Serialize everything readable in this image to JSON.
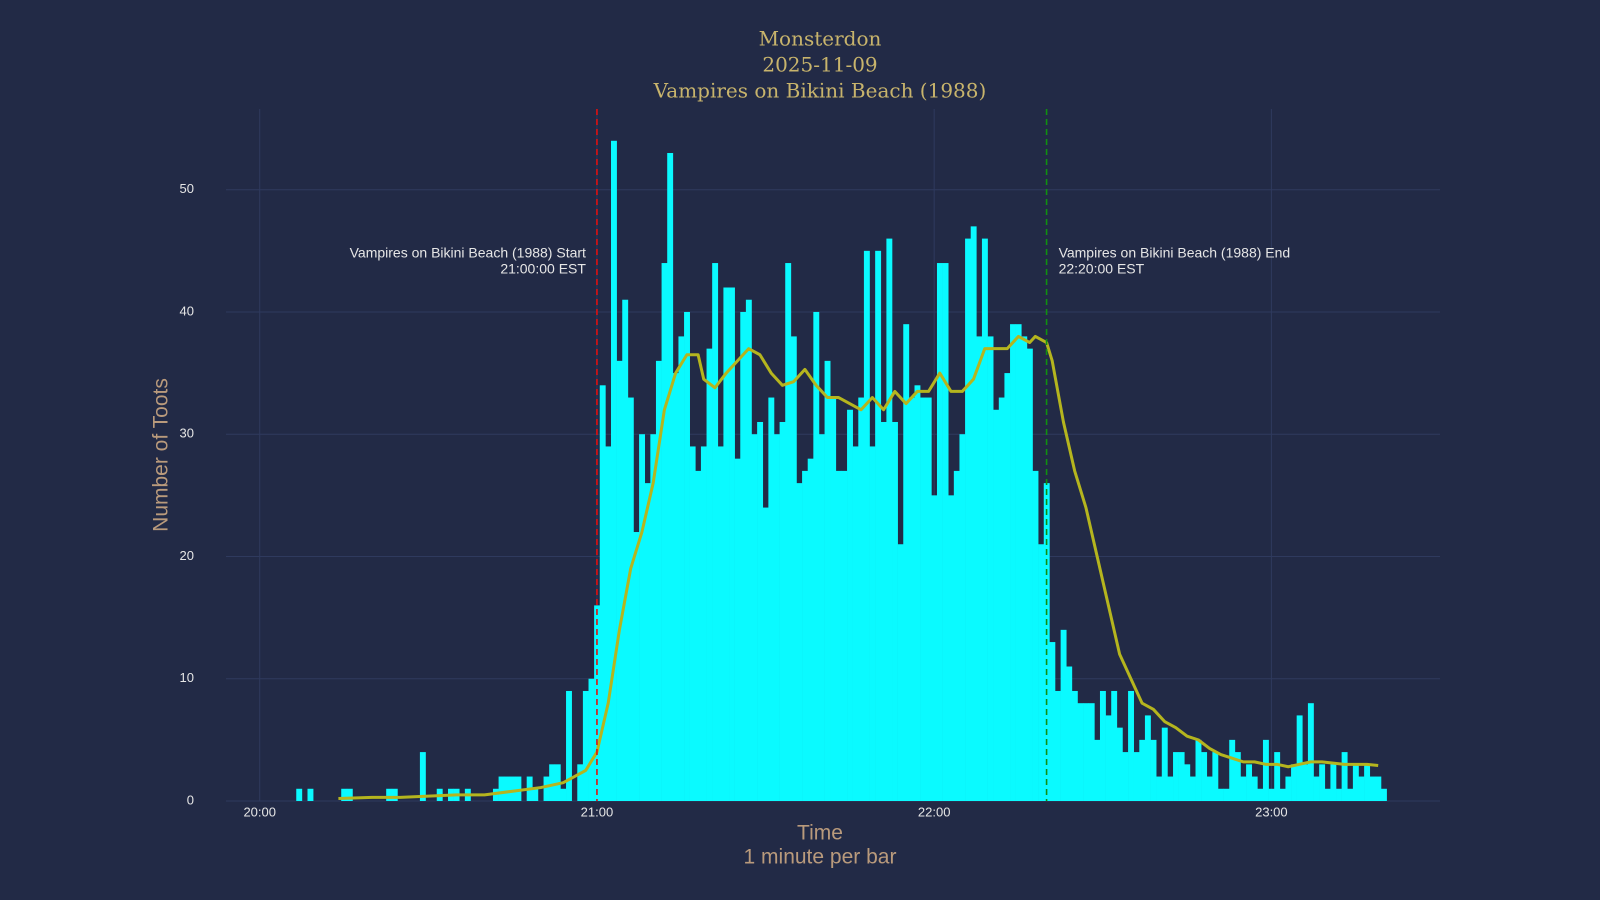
{
  "chart_data": {
    "type": "bar",
    "title": [
      "Monsterdon",
      "2025-11-09",
      "Vampires on Bikini Beach (1988)"
    ],
    "xlabel": [
      "Time",
      "1 minute per bar"
    ],
    "ylabel": "Number of Toots",
    "color": "#0afaff",
    "x": [
      "20:07",
      "20:09",
      "20:15",
      "20:16",
      "20:23",
      "20:24",
      "20:29",
      "20:32",
      "20:34",
      "20:35",
      "20:37",
      "20:42",
      "20:43",
      "20:44",
      "20:45",
      "20:46",
      "20:47",
      "20:48",
      "20:49",
      "20:50",
      "20:51",
      "20:52",
      "20:53",
      "20:54",
      "20:55",
      "20:56",
      "20:57",
      "20:58",
      "20:59",
      "21:00",
      "21:01",
      "21:02",
      "21:03",
      "21:04",
      "21:05",
      "21:06",
      "21:07",
      "21:08",
      "21:09",
      "21:10",
      "21:11",
      "21:12",
      "21:13",
      "21:14",
      "21:15",
      "21:16",
      "21:17",
      "21:18",
      "21:19",
      "21:20",
      "21:21",
      "21:22",
      "21:23",
      "21:24",
      "21:25",
      "21:26",
      "21:27",
      "21:28",
      "21:29",
      "21:30",
      "21:31",
      "21:32",
      "21:33",
      "21:34",
      "21:35",
      "21:36",
      "21:37",
      "21:38",
      "21:39",
      "21:40",
      "21:41",
      "21:42",
      "21:43",
      "21:44",
      "21:45",
      "21:46",
      "21:47",
      "21:48",
      "21:49",
      "21:50",
      "21:51",
      "21:52",
      "21:53",
      "21:54",
      "21:55",
      "21:56",
      "21:57",
      "21:58",
      "21:59",
      "22:00",
      "22:01",
      "22:02",
      "22:03",
      "22:04",
      "22:05",
      "22:06",
      "22:07",
      "22:08",
      "22:09",
      "22:10",
      "22:11",
      "22:12",
      "22:13",
      "22:14",
      "22:15",
      "22:16",
      "22:17",
      "22:18",
      "22:19",
      "22:20",
      "22:21",
      "22:22",
      "22:23",
      "22:24",
      "22:25",
      "22:26",
      "22:27",
      "22:28",
      "22:29",
      "22:30",
      "22:31",
      "22:32",
      "22:33",
      "22:34",
      "22:35",
      "22:36",
      "22:37",
      "22:38",
      "22:39",
      "22:40",
      "22:41",
      "22:42",
      "22:43",
      "22:44",
      "22:45",
      "22:46",
      "22:47",
      "22:48",
      "22:49",
      "22:50",
      "22:51",
      "22:52",
      "22:53",
      "22:54",
      "22:55",
      "22:56",
      "22:57",
      "22:58",
      "22:59",
      "23:00",
      "23:01",
      "23:02",
      "23:03",
      "23:04",
      "23:05",
      "23:06",
      "23:07",
      "23:08",
      "23:09",
      "23:10",
      "23:11",
      "23:12",
      "23:13",
      "23:14",
      "23:15",
      "23:16",
      "23:17",
      "23:18",
      "23:19",
      "23:20"
    ],
    "values": [
      1,
      1,
      1,
      1,
      1,
      1,
      4,
      1,
      1,
      1,
      1,
      1,
      2,
      2,
      2,
      2,
      0,
      2,
      1,
      0,
      2,
      3,
      3,
      1,
      9,
      0,
      3,
      9,
      10,
      16,
      34,
      29,
      54,
      36,
      41,
      33,
      22,
      30,
      26,
      30,
      36,
      44,
      53,
      35,
      38,
      40,
      29,
      27,
      29,
      37,
      44,
      29,
      42,
      42,
      28,
      40,
      41,
      30,
      31,
      24,
      33,
      30,
      31,
      44,
      38,
      26,
      27,
      28,
      40,
      30,
      36,
      33,
      27,
      27,
      32,
      29,
      33,
      45,
      29,
      45,
      31,
      46,
      31,
      21,
      39,
      33,
      34,
      33,
      33,
      25,
      44,
      44,
      25,
      27,
      30,
      46,
      47,
      38,
      46,
      38,
      32,
      33,
      35,
      39,
      39,
      38,
      37,
      27,
      21,
      26,
      13,
      9,
      14,
      11,
      9,
      8,
      8,
      8,
      5,
      9,
      7,
      9,
      6,
      4,
      9,
      4,
      5,
      7,
      5,
      2,
      6,
      2,
      4,
      4,
      3,
      2,
      5,
      4,
      2,
      4,
      1,
      1,
      5,
      4,
      2,
      3,
      2,
      1,
      5,
      1,
      4,
      1,
      2,
      3,
      7,
      3,
      8,
      2,
      3,
      1,
      3,
      1,
      4,
      1,
      3,
      2,
      3,
      2,
      2,
      1
    ],
    "trend": {
      "color": "#b5b51e",
      "x": [
        "20:14",
        "20:20",
        "20:25",
        "20:30",
        "20:35",
        "20:40",
        "20:45",
        "20:50",
        "20:54",
        "20:56",
        "20:58",
        "21:00",
        "21:02",
        "21:04",
        "21:06",
        "21:08",
        "21:10",
        "21:12",
        "21:14",
        "21:16",
        "21:18",
        "21:19",
        "21:21",
        "21:23",
        "21:25",
        "21:27",
        "21:29",
        "21:31",
        "21:33",
        "21:35",
        "21:37",
        "21:39",
        "21:41",
        "21:43",
        "21:45",
        "21:47",
        "21:49",
        "21:51",
        "21:53",
        "21:55",
        "21:57",
        "21:59",
        "22:01",
        "22:03",
        "22:05",
        "22:07",
        "22:09",
        "22:11",
        "22:13",
        "22:15",
        "22:17",
        "22:18",
        "22:20",
        "22:21",
        "22:23",
        "22:25",
        "22:27",
        "22:29",
        "22:31",
        "22:33",
        "22:35",
        "22:37",
        "22:39",
        "22:41",
        "22:43",
        "22:45",
        "22:47",
        "22:49",
        "22:51",
        "22:53",
        "22:55",
        "22:57",
        "22:59",
        "23:01",
        "23:03",
        "23:05",
        "23:07",
        "23:09",
        "23:11",
        "23:13",
        "23:15",
        "23:17",
        "23:19"
      ],
      "values": [
        0.2,
        0.3,
        0.3,
        0.4,
        0.5,
        0.5,
        0.8,
        1.1,
        1.5,
        2,
        2.5,
        4,
        8,
        14,
        19,
        22,
        26,
        32,
        35,
        36.5,
        36.5,
        34.5,
        33.8,
        35,
        36,
        37,
        36.5,
        35,
        34,
        34.3,
        35.3,
        34,
        33,
        33,
        32.5,
        32,
        33,
        32,
        33.5,
        32.5,
        33.5,
        33.5,
        35,
        33.5,
        33.5,
        34.5,
        37,
        37,
        37,
        38,
        37.5,
        38,
        37.5,
        36,
        31,
        27,
        24,
        20,
        16,
        12,
        10,
        8,
        7.5,
        6.5,
        6,
        5.3,
        5,
        4.3,
        3.8,
        3.5,
        3.2,
        3.2,
        3,
        3,
        2.8,
        3,
        3.2,
        3.2,
        3.1,
        3,
        3,
        3,
        2.9
      ]
    },
    "annotations": [
      {
        "x": "21:00",
        "color": "#e01010",
        "side": "left",
        "text": [
          "Vampires on Bikini Beach (1988) Start",
          "21:00:00 EST"
        ]
      },
      {
        "x": "22:20",
        "color": "#109010",
        "side": "right",
        "text": [
          "Vampires on Bikini Beach (1988) End",
          "22:20:00 EST"
        ]
      }
    ],
    "xlim": [
      "19:54",
      "23:30"
    ],
    "xticks": [
      "20:00",
      "21:00",
      "22:00",
      "23:00"
    ],
    "ylim": [
      0,
      56.6
    ],
    "yticks": [
      0,
      10,
      20,
      30,
      40,
      50
    ],
    "grid": true
  }
}
